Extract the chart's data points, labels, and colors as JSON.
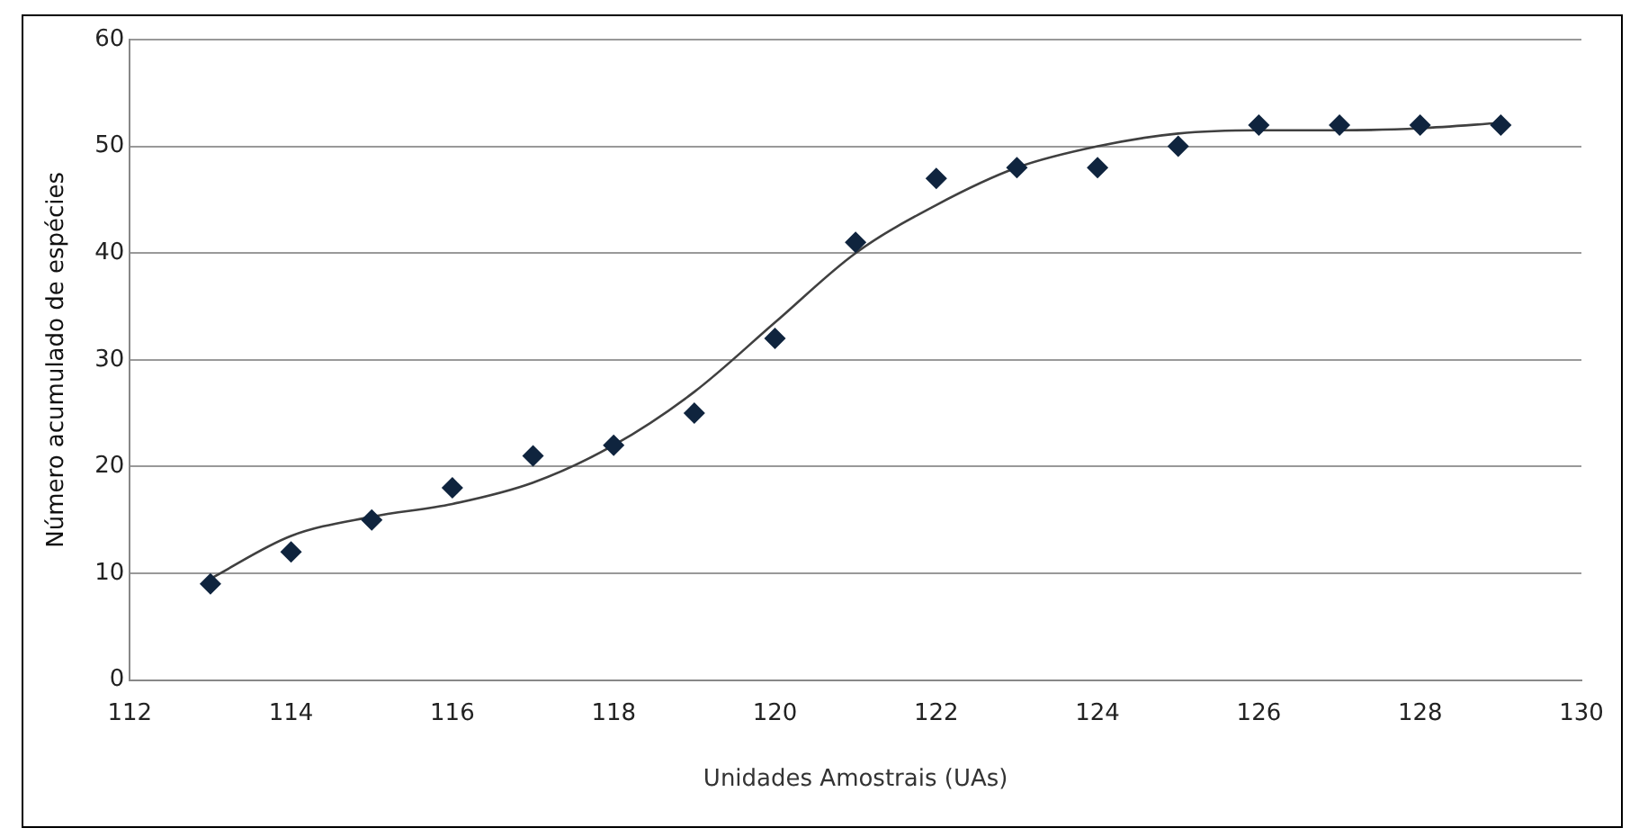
{
  "chart_data": {
    "type": "scatter",
    "xlabel": "Unidades Amostrais (UAs)",
    "ylabel": "Número acumulado de espécies",
    "xlim": [
      112,
      130
    ],
    "xticks": [
      112,
      114,
      116,
      118,
      120,
      122,
      124,
      126,
      128,
      130
    ],
    "ylim": [
      0,
      60
    ],
    "yticks": [
      0,
      10,
      20,
      30,
      40,
      50,
      60
    ],
    "grid": "y",
    "legend": false,
    "x": [
      113,
      114,
      115,
      116,
      117,
      118,
      119,
      120,
      121,
      122,
      123,
      124,
      125,
      126,
      127,
      128,
      129
    ],
    "series": [
      {
        "color": "#0f243e",
        "marker": "diamond",
        "values": [
          9,
          12,
          15,
          18,
          21,
          22,
          25,
          32,
          41,
          47,
          48,
          48,
          50,
          52,
          52,
          52,
          52
        ]
      },
      {
        "type": "line",
        "color": "#404040",
        "marker": "none",
        "x": [
          113,
          114,
          115,
          116,
          117,
          118,
          119,
          120,
          121,
          122,
          123,
          124,
          125,
          126,
          127,
          128,
          129
        ],
        "values": [
          9.5,
          13.5,
          15.3,
          16.5,
          18.5,
          22,
          27,
          33.5,
          40,
          44.5,
          48,
          50,
          51.2,
          51.5,
          51.5,
          51.7,
          52.2
        ]
      }
    ]
  }
}
